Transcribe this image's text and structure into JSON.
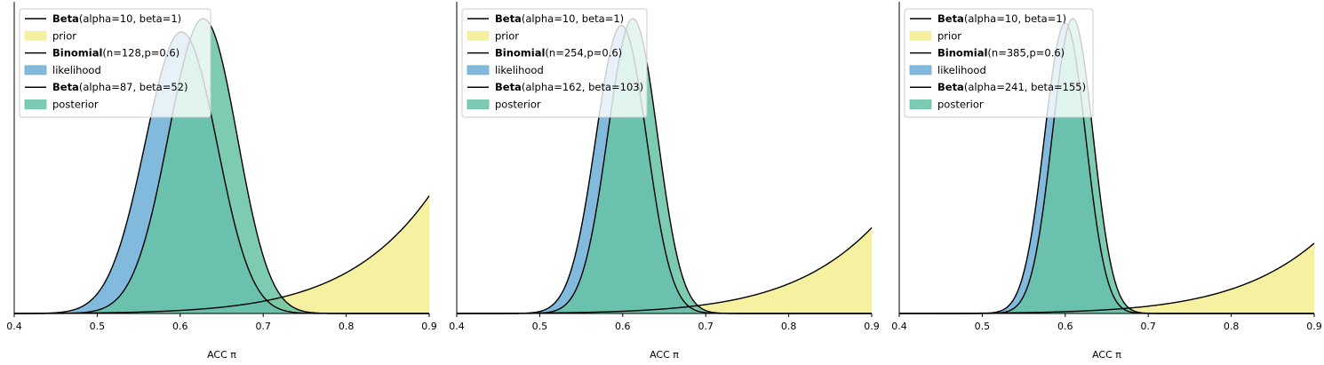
{
  "chart_data": [
    {
      "type": "area",
      "xlabel": "ACC π",
      "xlim": [
        0.4,
        0.9
      ],
      "x_ticks": [
        "0.4",
        "0.5",
        "0.6",
        "0.7",
        "0.8",
        "0.9"
      ],
      "y_axis_visible": false,
      "legend_placement": "top-left",
      "series": [
        {
          "kind": "line",
          "dist": "Beta",
          "params": "(alpha=10, beta=1)",
          "a": 10,
          "b": 1
        },
        {
          "kind": "fill",
          "name": "prior",
          "color": "#f5ee91",
          "source": 0
        },
        {
          "kind": "line",
          "dist": "Binomial",
          "params": "(n=128,p=0.6)",
          "n": 128,
          "p": 0.6
        },
        {
          "kind": "fill",
          "name": "likelihood",
          "color": "#6baed6",
          "source": 2
        },
        {
          "kind": "line",
          "dist": "Beta",
          "params": "(alpha=87, beta=52)",
          "a": 87,
          "b": 52
        },
        {
          "kind": "fill",
          "name": "posterior",
          "color": "#66c2a5",
          "source": 4
        }
      ]
    },
    {
      "type": "area",
      "xlabel": "ACC π",
      "xlim": [
        0.4,
        0.9
      ],
      "x_ticks": [
        "0.4",
        "0.5",
        "0.6",
        "0.7",
        "0.8",
        "0.9"
      ],
      "y_axis_visible": false,
      "legend_placement": "top-left",
      "series": [
        {
          "kind": "line",
          "dist": "Beta",
          "params": "(alpha=10, beta=1)",
          "a": 10,
          "b": 1
        },
        {
          "kind": "fill",
          "name": "prior",
          "color": "#f5ee91",
          "source": 0
        },
        {
          "kind": "line",
          "dist": "Binomial",
          "params": "(n=254,p=0.6)",
          "n": 254,
          "p": 0.6
        },
        {
          "kind": "fill",
          "name": "likelihood",
          "color": "#6baed6",
          "source": 2
        },
        {
          "kind": "line",
          "dist": "Beta",
          "params": "(alpha=162, beta=103)",
          "a": 162,
          "b": 103
        },
        {
          "kind": "fill",
          "name": "posterior",
          "color": "#66c2a5",
          "source": 4
        }
      ]
    },
    {
      "type": "area",
      "xlabel": "ACC π",
      "xlim": [
        0.4,
        0.9
      ],
      "x_ticks": [
        "0.4",
        "0.5",
        "0.6",
        "0.7",
        "0.8",
        "0.9"
      ],
      "y_axis_visible": false,
      "legend_placement": "top-left",
      "series": [
        {
          "kind": "line",
          "dist": "Beta",
          "params": "(alpha=10, beta=1)",
          "a": 10,
          "b": 1
        },
        {
          "kind": "fill",
          "name": "prior",
          "color": "#f5ee91",
          "source": 0
        },
        {
          "kind": "line",
          "dist": "Binomial",
          "params": "(n=385,p=0.6)",
          "n": 385,
          "p": 0.6
        },
        {
          "kind": "fill",
          "name": "likelihood",
          "color": "#6baed6",
          "source": 2
        },
        {
          "kind": "line",
          "dist": "Beta",
          "params": "(alpha=241, beta=155)",
          "a": 241,
          "b": 155
        },
        {
          "kind": "fill",
          "name": "posterior",
          "color": "#66c2a5",
          "source": 4
        }
      ]
    }
  ]
}
